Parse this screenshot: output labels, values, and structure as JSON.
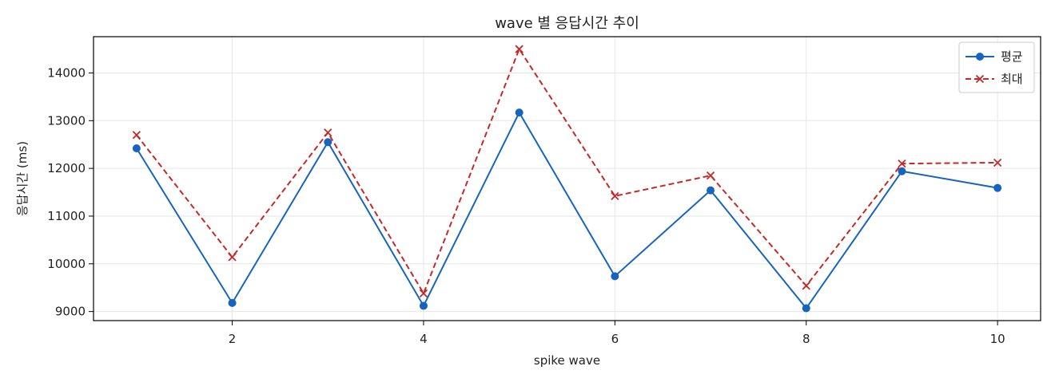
{
  "chart_data": {
    "type": "line",
    "title": "wave 별 응답시간 추이",
    "xlabel": "spike wave",
    "ylabel": "응답시간 (ms)",
    "x": [
      1,
      2,
      3,
      4,
      5,
      6,
      7,
      8,
      9,
      10
    ],
    "xlim": [
      0.55,
      10.45
    ],
    "ylim": [
      8810,
      14760
    ],
    "xticks": [
      2,
      4,
      6,
      8,
      10
    ],
    "yticks": [
      9000,
      10000,
      11000,
      12000,
      13000,
      14000
    ],
    "grid": true,
    "legend_position": "top-right",
    "series": [
      {
        "name": "평균",
        "values": [
          12420,
          9180,
          12550,
          9120,
          13170,
          9740,
          11540,
          9070,
          11940,
          11590
        ],
        "color": "#1565c0",
        "marker": "circle",
        "line_style": "solid"
      },
      {
        "name": "최대",
        "values": [
          12700,
          10140,
          12750,
          9380,
          14500,
          11420,
          11850,
          9540,
          12100,
          12120
        ],
        "color": "#c62828",
        "marker": "x",
        "line_style": "dashed"
      }
    ]
  }
}
